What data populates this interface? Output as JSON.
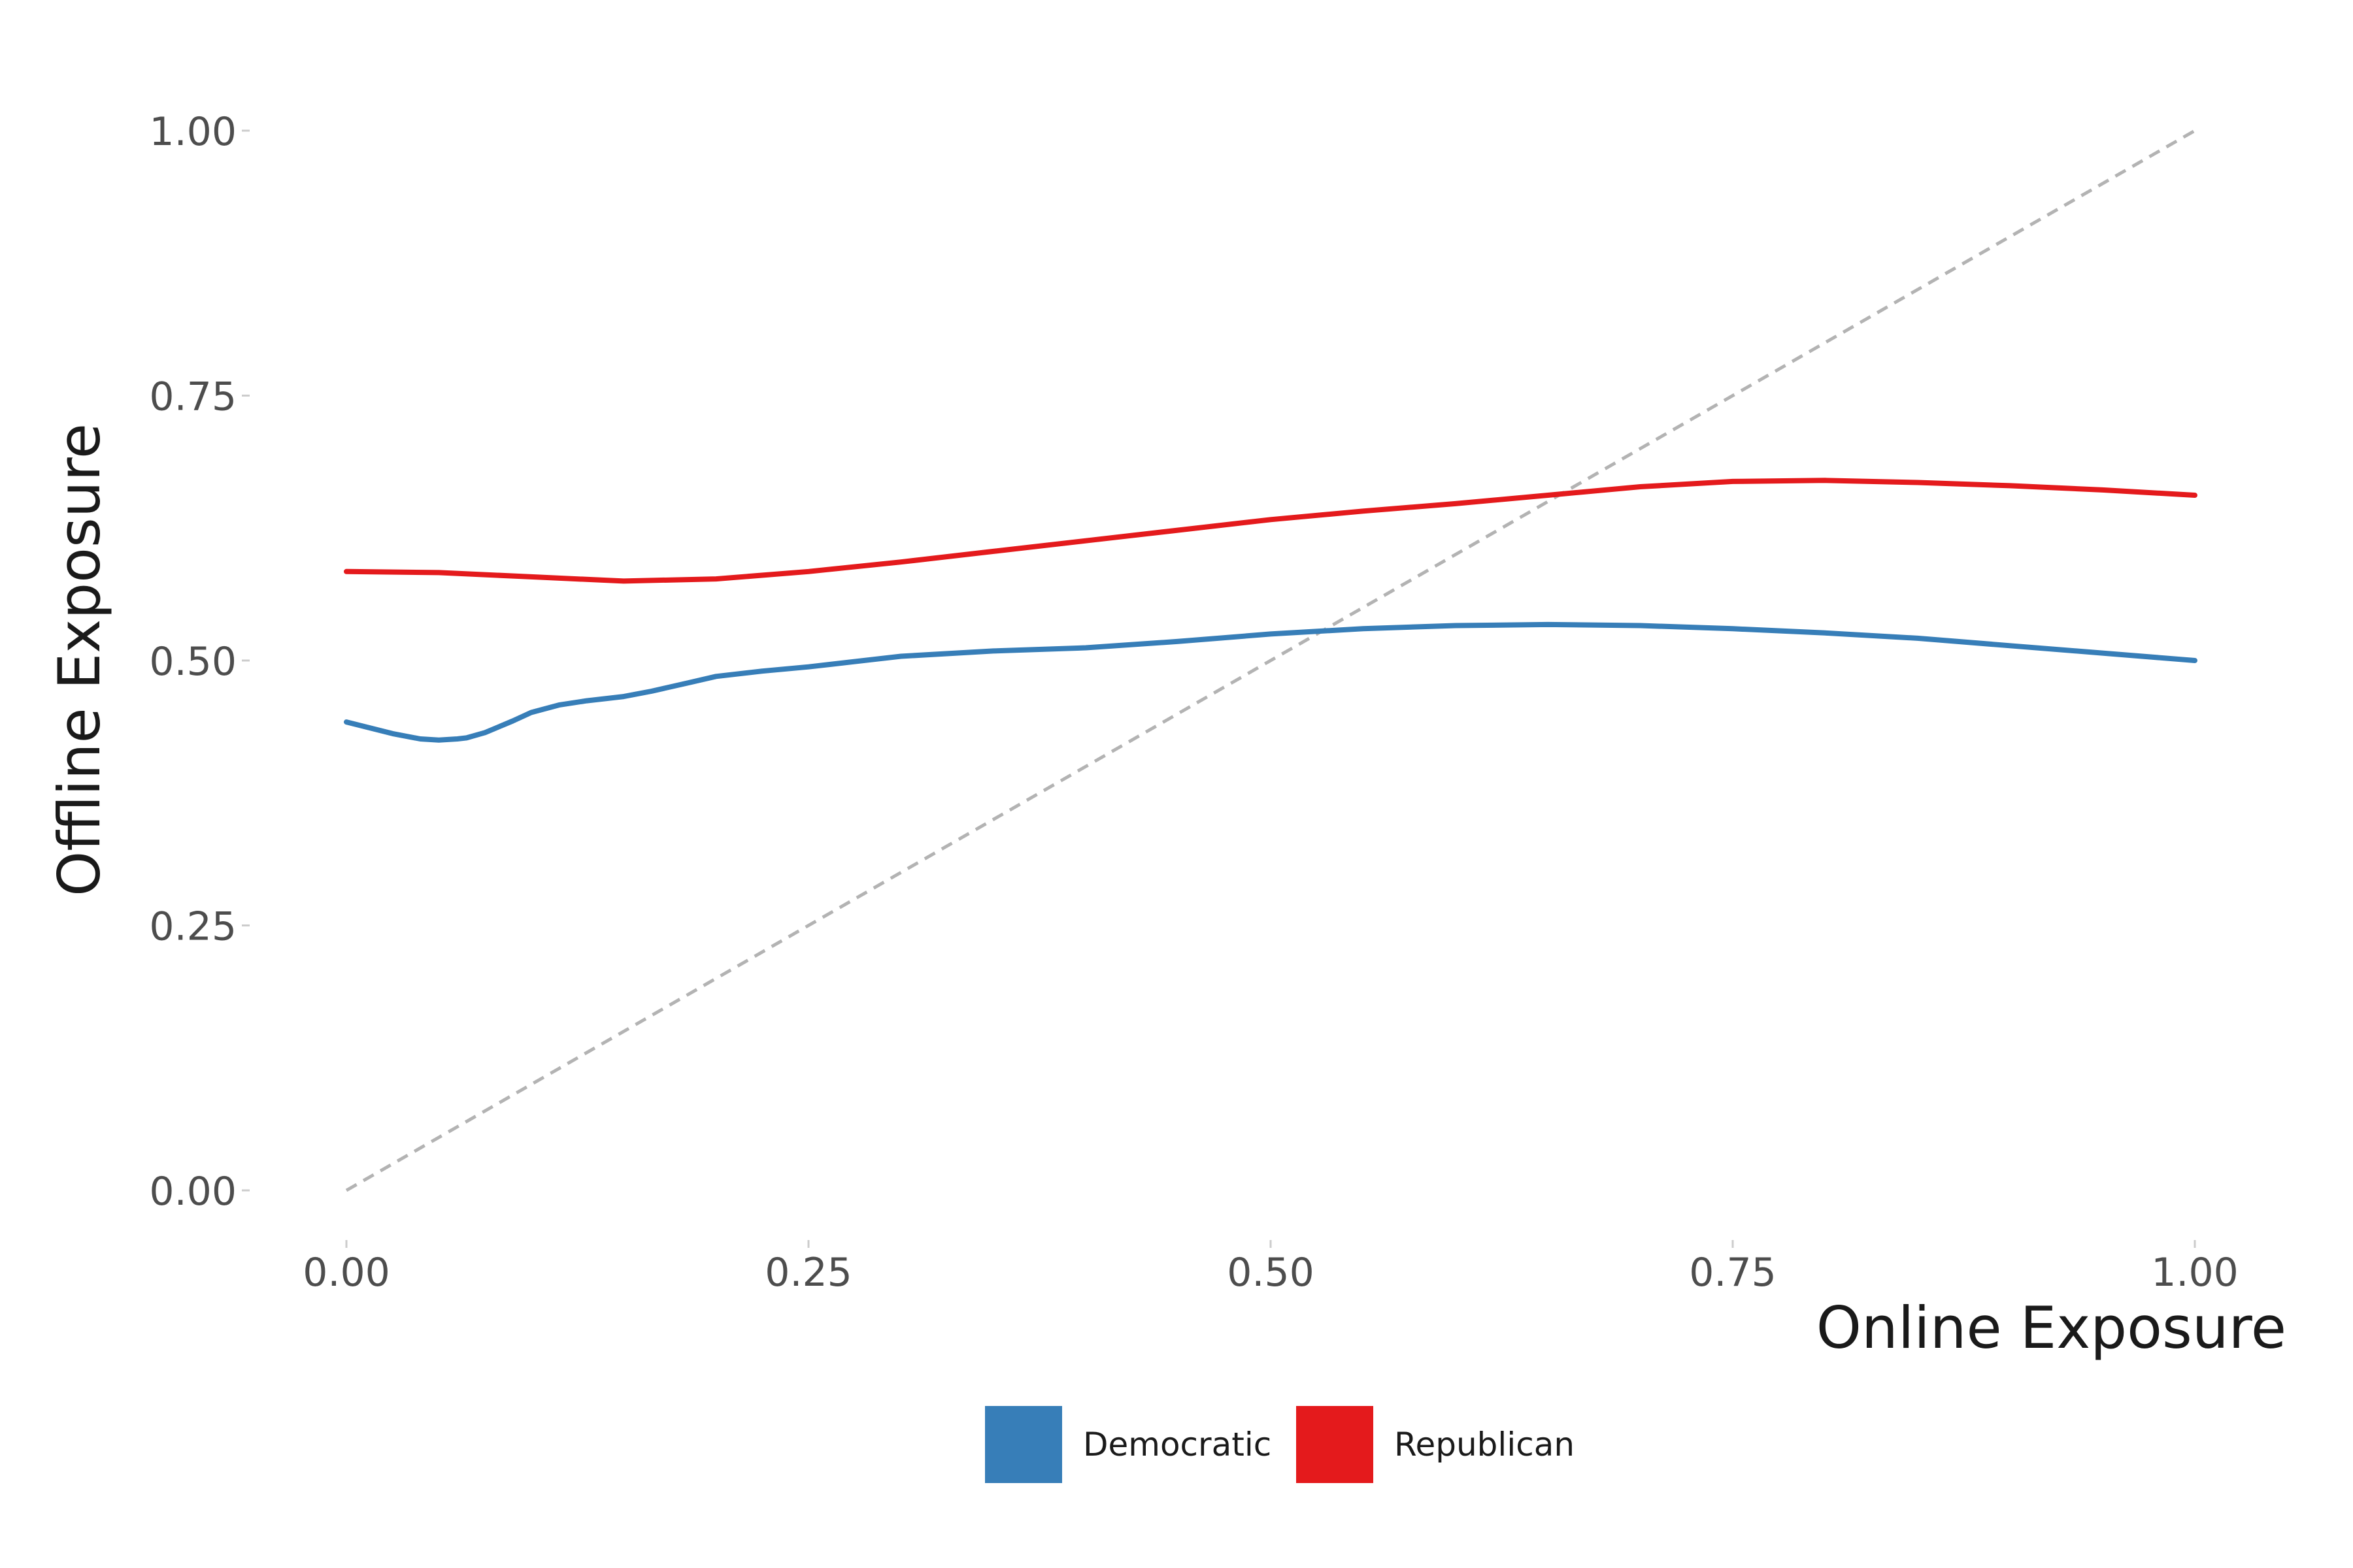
{
  "chart_data": {
    "type": "line",
    "title": "",
    "xlabel": "Online Exposure",
    "ylabel": "Offline Exposure",
    "xlim": [
      -0.1,
      1.1
    ],
    "ylim": [
      -0.05,
      1.05
    ],
    "x_ticks": [
      0,
      0.25,
      0.5,
      0.75,
      1.0
    ],
    "x_tick_labels": [
      "0.00",
      "0.25",
      "0.50",
      "0.75",
      "1.00"
    ],
    "y_ticks": [
      0,
      0.25,
      0.5,
      0.75,
      1.0
    ],
    "y_tick_labels": [
      "0.00",
      "0.25",
      "0.50",
      "0.75",
      "1.00"
    ],
    "grid": false,
    "legend_position": "bottom",
    "reference_line": {
      "style": "dashed",
      "color": "#b3b3b3",
      "x": [
        0,
        1
      ],
      "y": [
        0,
        1
      ]
    },
    "series": [
      {
        "name": "Democratic",
        "color": "#377eb8",
        "x": [
          0.0,
          0.025,
          0.04,
          0.05,
          0.06,
          0.065,
          0.075,
          0.09,
          0.1,
          0.115,
          0.13,
          0.15,
          0.165,
          0.185,
          0.2,
          0.225,
          0.25,
          0.3,
          0.35,
          0.4,
          0.45,
          0.5,
          0.55,
          0.6,
          0.65,
          0.7,
          0.75,
          0.8,
          0.85,
          0.9,
          0.95,
          1.0
        ],
        "y": [
          0.442,
          0.431,
          0.426,
          0.425,
          0.426,
          0.427,
          0.432,
          0.443,
          0.451,
          0.458,
          0.462,
          0.466,
          0.471,
          0.479,
          0.485,
          0.49,
          0.494,
          0.504,
          0.509,
          0.512,
          0.518,
          0.525,
          0.53,
          0.533,
          0.534,
          0.533,
          0.53,
          0.526,
          0.521,
          0.514,
          0.507,
          0.5
        ]
      },
      {
        "name": "Republican",
        "color": "#e41a1c",
        "x": [
          0.0,
          0.05,
          0.1,
          0.15,
          0.2,
          0.25,
          0.3,
          0.35,
          0.4,
          0.45,
          0.5,
          0.55,
          0.6,
          0.65,
          0.7,
          0.75,
          0.8,
          0.85,
          0.9,
          0.95,
          1.0
        ],
        "y": [
          0.584,
          0.583,
          0.579,
          0.575,
          0.577,
          0.584,
          0.593,
          0.603,
          0.613,
          0.623,
          0.633,
          0.641,
          0.648,
          0.656,
          0.664,
          0.669,
          0.67,
          0.668,
          0.665,
          0.661,
          0.656
        ]
      }
    ]
  }
}
